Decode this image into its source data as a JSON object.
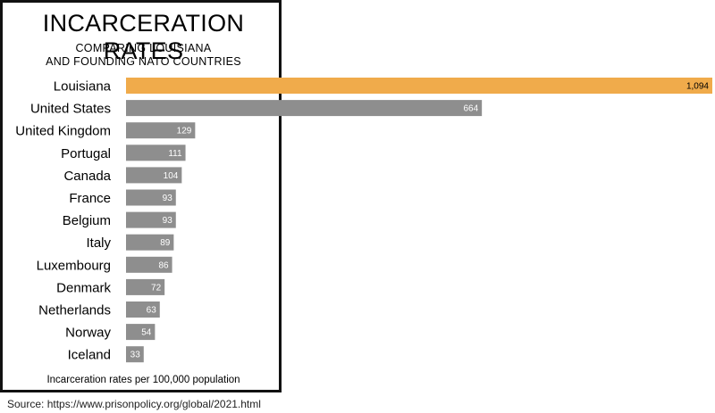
{
  "chart_data": {
    "type": "bar",
    "orientation": "horizontal",
    "title": "INCARCERATION RATES",
    "subtitle_lines": [
      "COMPARING LOUISIANA",
      "AND FOUNDING NATO COUNTRIES"
    ],
    "xlabel": "Incarceration rates per 100,000 population",
    "ylabel": "",
    "categories": [
      "Louisiana",
      "United States",
      "United Kingdom",
      "Portugal",
      "Canada",
      "France",
      "Belgium",
      "Italy",
      "Luxembourg",
      "Denmark",
      "Netherlands",
      "Norway",
      "Iceland"
    ],
    "values": [
      1094,
      664,
      129,
      111,
      104,
      93,
      93,
      89,
      86,
      72,
      63,
      54,
      33
    ],
    "value_labels": [
      "1,094",
      "664",
      "129",
      "111",
      "104",
      "93",
      "93",
      "89",
      "86",
      "72",
      "63",
      "54",
      "33"
    ],
    "highlight_color": "#f0ab4b",
    "bar_color": "#8e8e8e",
    "grid": false
  },
  "source": "Source: https://www.prisonpolicy.org/global/2021.html"
}
